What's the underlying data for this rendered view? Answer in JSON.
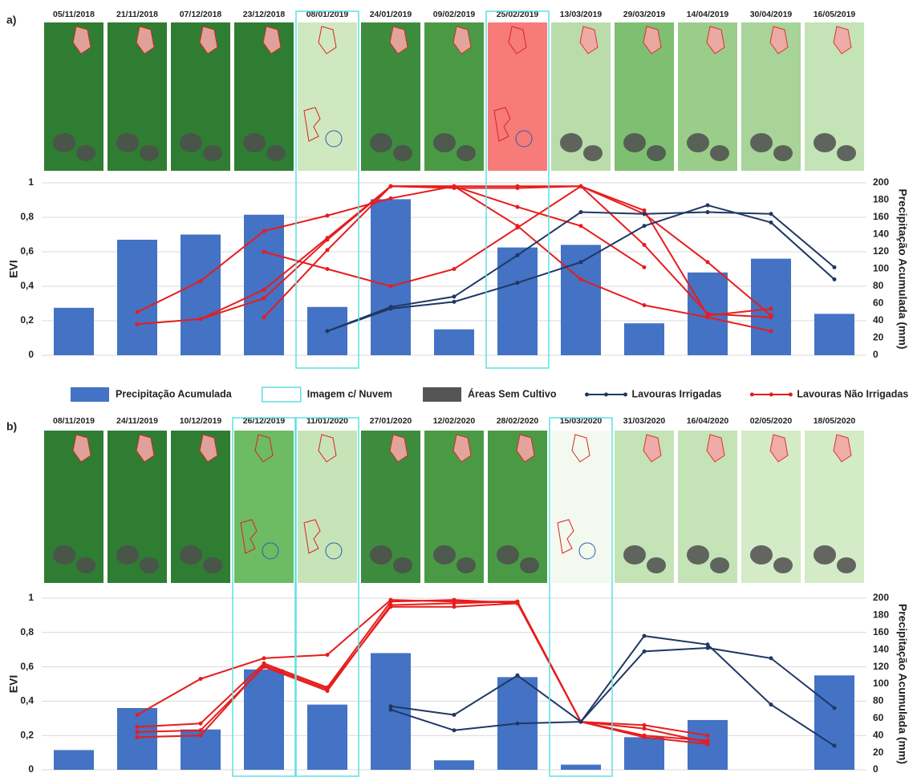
{
  "chart_data": [
    {
      "type": "combo",
      "label": "a)",
      "ylabel": "EVI",
      "y2label": "Precipitação Acumulada (mm)",
      "categories": [
        "05/11/2018",
        "21/11/2018",
        "07/12/2018",
        "23/12/2018",
        "08/01/2019",
        "24/01/2019",
        "09/02/2019",
        "25/02/2019",
        "13/03/2019",
        "29/03/2019",
        "14/04/2019",
        "30/04/2019",
        "16/05/2019"
      ],
      "cloudy": [
        4,
        7
      ],
      "image_colors": [
        "#2e7d32",
        "#2e7d32",
        "#2e7d32",
        "#2e7d32",
        "#cfe8c0",
        "#3d8b3d",
        "#4a9a45",
        "#f77b78",
        "#b9dcaa",
        "#7fbf72",
        "#9acd8a",
        "#a8d49a",
        "#c4e3b6"
      ],
      "ylim": [
        0,
        1
      ],
      "yticks": [
        0,
        {
          "value": 0.2,
          "label": "0,2"
        },
        {
          "value": 0.4,
          "label": "0,4"
        },
        {
          "value": 0.6,
          "label": "0,6"
        },
        {
          "value": 0.8,
          "label": "0,8"
        },
        1
      ],
      "y2lim": [
        0,
        200
      ],
      "y2ticks": [
        0,
        20,
        40,
        60,
        80,
        100,
        120,
        140,
        160,
        180,
        200
      ],
      "grid": true,
      "series": [
        {
          "kind": "bar",
          "axis": "y2",
          "color": "#4472c4",
          "values": [
            55,
            134,
            140,
            163,
            56,
            181,
            30,
            125,
            128,
            37,
            96,
            112,
            48
          ]
        },
        {
          "kind": "line",
          "color": "#e81c1c",
          "values": [
            null,
            0.25,
            0.43,
            0.72,
            0.81,
            0.91,
            0.98,
            0.86,
            0.75,
            0.51,
            null,
            null,
            null
          ]
        },
        {
          "kind": "line",
          "color": "#e81c1c",
          "values": [
            null,
            0.18,
            0.21,
            0.33,
            0.67,
            0.98,
            0.98,
            0.98,
            0.98,
            0.82,
            0.54,
            0.23,
            null
          ]
        },
        {
          "kind": "line",
          "color": "#e81c1c",
          "values": [
            null,
            null,
            0.21,
            0.38,
            0.68,
            0.98,
            0.97,
            0.97,
            0.98,
            0.84,
            0.23,
            0.27,
            null
          ]
        },
        {
          "kind": "line",
          "color": "#e81c1c",
          "values": [
            null,
            null,
            null,
            0.22,
            0.61,
            0.98,
            0.98,
            0.75,
            0.44,
            0.29,
            0.22,
            0.14,
            null
          ]
        },
        {
          "kind": "line",
          "color": "#e81c1c",
          "values": [
            null,
            null,
            null,
            0.6,
            0.5,
            0.4,
            0.5,
            0.74,
            0.98,
            0.64,
            0.24,
            0.22,
            null
          ]
        },
        {
          "kind": "line",
          "color": "#1f3864",
          "values": [
            null,
            null,
            null,
            null,
            0.14,
            0.27,
            0.31,
            0.42,
            0.54,
            0.75,
            0.87,
            0.77,
            0.44
          ]
        },
        {
          "kind": "line",
          "color": "#1f3864",
          "values": [
            null,
            null,
            null,
            null,
            0.14,
            0.28,
            0.34,
            0.58,
            0.83,
            0.82,
            0.83,
            0.82,
            0.51
          ]
        }
      ]
    },
    {
      "type": "combo",
      "label": "b)",
      "ylabel": "EVI",
      "y2label": "Precipitação Acumulada (mm)",
      "categories": [
        "08/11/2019",
        "24/11/2019",
        "10/12/2019",
        "26/12/2019",
        "11/01/2020",
        "27/01/2020",
        "12/02/2020",
        "28/02/2020",
        "15/03/2020",
        "31/03/2020",
        "16/04/2020",
        "02/05/2020",
        "18/05/2020"
      ],
      "cloudy": [
        3,
        4,
        8
      ],
      "image_colors": [
        "#2e7d32",
        "#2e7d32",
        "#2e7d32",
        "#6dbb62",
        "#c7e4b8",
        "#3d8b3d",
        "#4a9a45",
        "#4a9a45",
        "#f3f9ef",
        "#c4e3b6",
        "#c4e3b6",
        "#d3ebc7",
        "#d3ebc7"
      ],
      "ylim": [
        0,
        1
      ],
      "yticks": [
        0,
        {
          "value": 0.2,
          "label": "0,2"
        },
        {
          "value": 0.4,
          "label": "0,4"
        },
        {
          "value": 0.6,
          "label": "0,6"
        },
        {
          "value": 0.8,
          "label": "0,8"
        },
        1
      ],
      "y2lim": [
        0,
        200
      ],
      "y2ticks": [
        0,
        20,
        40,
        60,
        80,
        100,
        120,
        140,
        160,
        180,
        200
      ],
      "grid": true,
      "series": [
        {
          "kind": "bar",
          "axis": "y2",
          "color": "#4472c4",
          "values": [
            23,
            72,
            47,
            117,
            76,
            136,
            11,
            108,
            6,
            38,
            58,
            0,
            110
          ]
        },
        {
          "kind": "line",
          "color": "#e81c1c",
          "values": [
            null,
            0.32,
            0.53,
            0.65,
            0.67,
            0.99,
            0.98,
            0.98,
            0.28,
            0.26,
            0.2,
            null,
            null
          ]
        },
        {
          "kind": "line",
          "color": "#e81c1c",
          "values": [
            null,
            0.25,
            0.27,
            0.62,
            0.48,
            0.98,
            0.99,
            0.97,
            0.28,
            0.24,
            0.16,
            null,
            null
          ]
        },
        {
          "kind": "line",
          "color": "#e81c1c",
          "values": [
            null,
            0.22,
            0.23,
            0.6,
            0.46,
            0.96,
            0.97,
            0.98,
            0.28,
            0.2,
            0.17,
            null,
            null
          ]
        },
        {
          "kind": "line",
          "color": "#e81c1c",
          "values": [
            null,
            0.19,
            0.2,
            0.61,
            0.47,
            0.95,
            0.95,
            0.97,
            0.28,
            0.19,
            0.15,
            null,
            null
          ]
        },
        {
          "kind": "line",
          "color": "#1f3864",
          "values": [
            null,
            null,
            null,
            null,
            null,
            0.37,
            0.32,
            0.55,
            0.28,
            0.78,
            0.73,
            0.38,
            0.14
          ]
        },
        {
          "kind": "line",
          "color": "#1f3864",
          "values": [
            null,
            null,
            null,
            null,
            null,
            0.35,
            0.23,
            0.27,
            0.28,
            0.69,
            0.71,
            0.65,
            0.36
          ]
        }
      ]
    }
  ],
  "legend": [
    {
      "label": "Precipitação Acumulada",
      "kind": "bar",
      "color": "#4472c4"
    },
    {
      "label": "Imagem c/ Nuvem",
      "kind": "box",
      "color": "#5fe0e0"
    },
    {
      "label": "Áreas Sem Cultivo",
      "kind": "bar",
      "color": "#555555"
    },
    {
      "label": "Lavouras Irrigadas",
      "kind": "line",
      "color": "#1f3864"
    },
    {
      "label": "Lavouras Não Irrigadas",
      "kind": "line",
      "color": "#e81c1c"
    }
  ]
}
